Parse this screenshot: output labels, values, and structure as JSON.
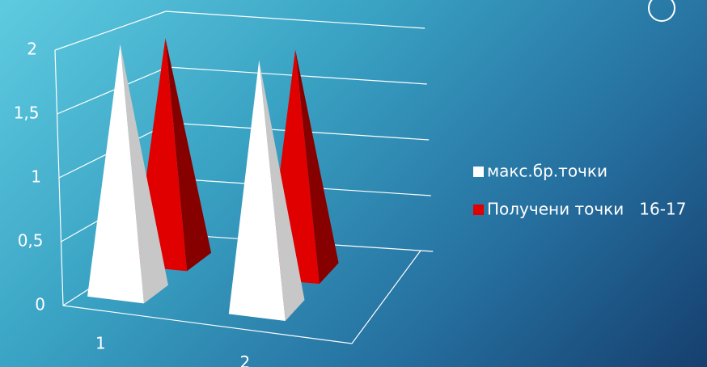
{
  "chart_data": {
    "type": "pyramid3d",
    "categories": [
      "1",
      "2"
    ],
    "series": [
      {
        "name": "макс.бр.точки",
        "color": "#ffffff",
        "values": [
          2,
          2
        ]
      },
      {
        "name": "Получени точки   16-17",
        "color": "#e00000",
        "values": [
          1.9,
          1.9
        ]
      }
    ],
    "ylim": [
      0,
      2
    ],
    "yticks": [
      0,
      {
        "value": 0.5,
        "label": "0,5"
      },
      1,
      {
        "value": 1.5,
        "label": "1,5"
      },
      2
    ],
    "grid": true
  }
}
